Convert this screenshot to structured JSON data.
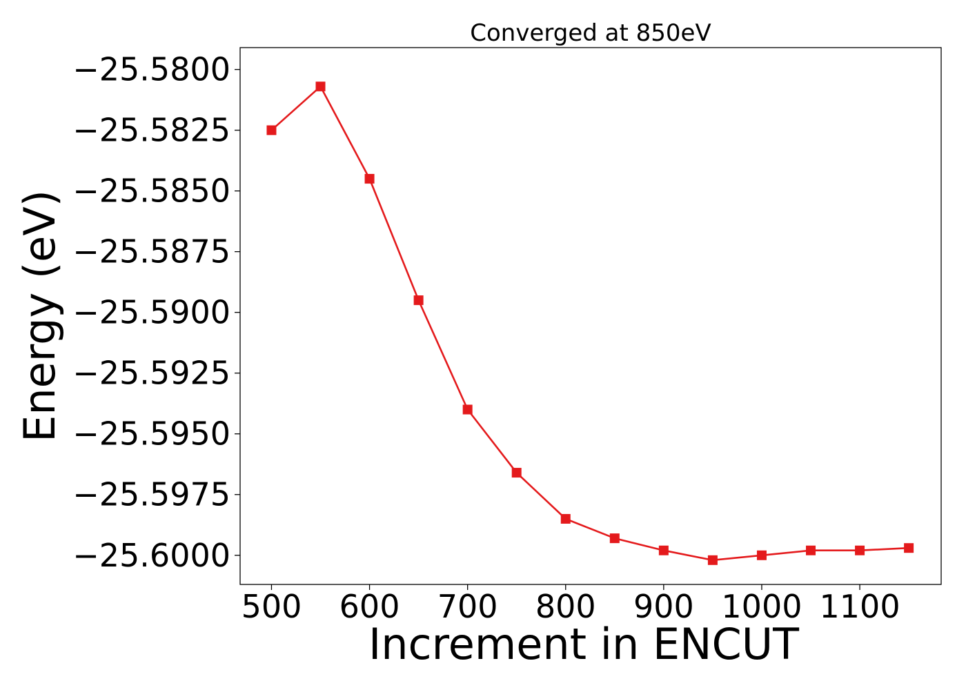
{
  "chart_data": {
    "type": "line",
    "title": "Converged at 850eV",
    "xlabel": "Increment in ENCUT",
    "ylabel": "Energy (eV)",
    "xlim": [
      468,
      1183
    ],
    "ylim": [
      -25.6012,
      -25.5791
    ],
    "x_ticks": [
      500,
      600,
      700,
      800,
      900,
      1000,
      1100
    ],
    "x_tick_labels": [
      "500",
      "600",
      "700",
      "800",
      "900",
      "1000",
      "1100"
    ],
    "y_ticks": [
      -25.58,
      -25.5825,
      -25.585,
      -25.5875,
      -25.59,
      -25.5925,
      -25.595,
      -25.5975,
      -25.6
    ],
    "y_tick_labels": [
      "−25.5800",
      "−25.5825",
      "−25.5850",
      "−25.5875",
      "−25.5900",
      "−25.5925",
      "−25.5950",
      "−25.5975",
      "−25.6000"
    ],
    "grid": false,
    "series": [
      {
        "color": "#e41a1c",
        "marker": "square",
        "x": [
          500,
          550,
          600,
          650,
          700,
          750,
          800,
          850,
          900,
          950,
          1000,
          1050,
          1100,
          1150
        ],
        "y": [
          -25.5825,
          -25.5807,
          -25.5845,
          -25.5895,
          -25.594,
          -25.5966,
          -25.5985,
          -25.5993,
          -25.5998,
          -25.6002,
          -25.6,
          -25.5998,
          -25.5998,
          -25.5997
        ]
      }
    ]
  }
}
